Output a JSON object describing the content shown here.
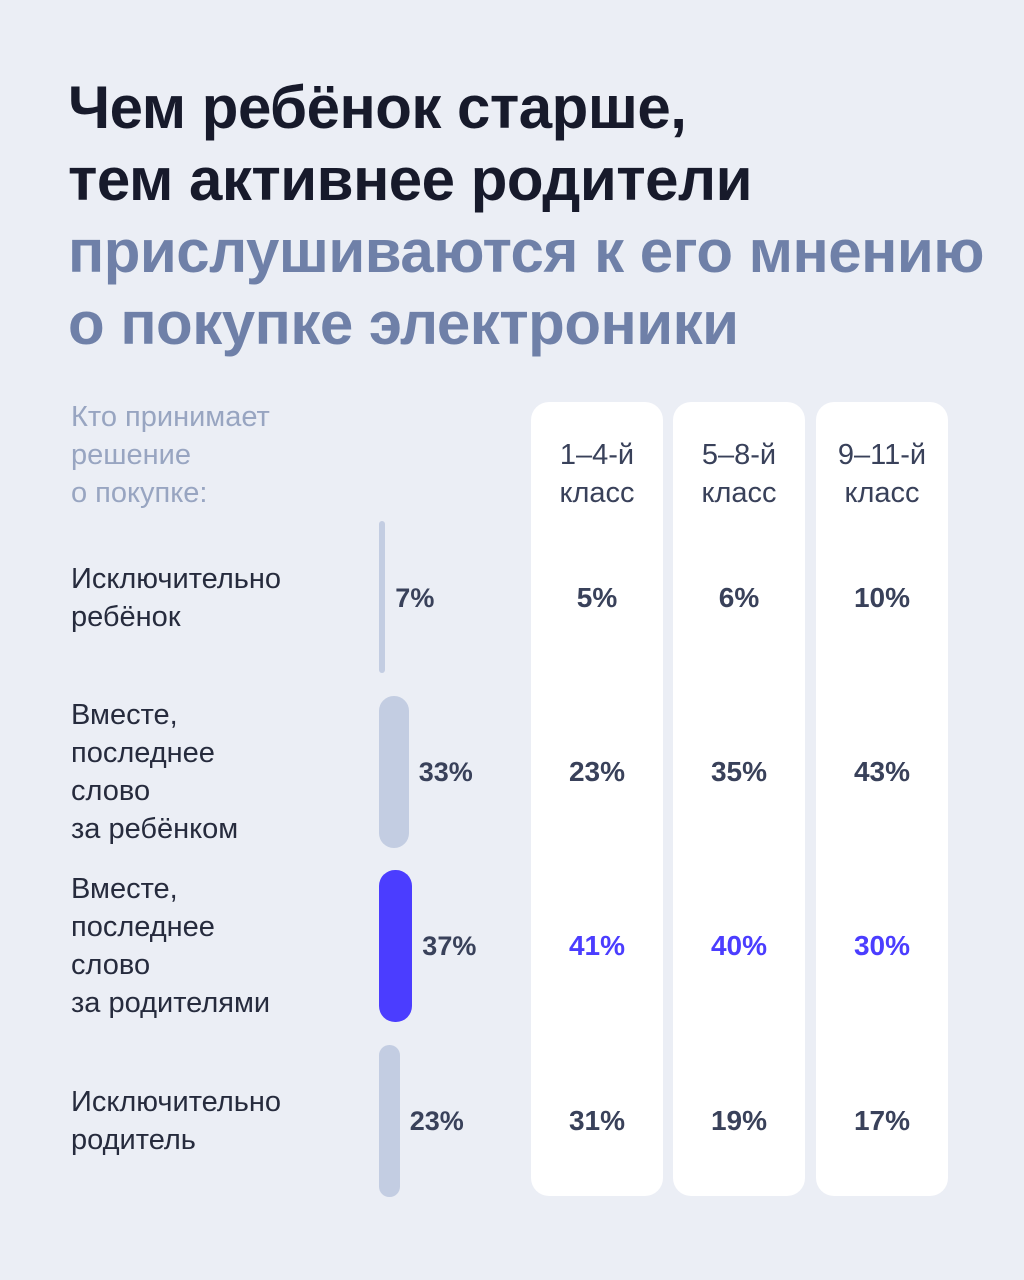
{
  "title": {
    "lines_dark": [
      "Чем ребёнок старше,",
      "тем активнее родители"
    ],
    "lines_accent": [
      "прислушиваются к его мнению",
      "о покупке электроники"
    ]
  },
  "header_label": [
    "Кто принимает",
    "решение",
    "о покупке:"
  ],
  "colors": {
    "background": "#ebeef5",
    "bar_neutral": "#c3cde2",
    "bar_highlight": "#4b3dff",
    "text_highlight": "#4b3dff"
  },
  "chart_data": {
    "type": "table",
    "columns": [
      {
        "label": [
          "1–4-й",
          "класс"
        ]
      },
      {
        "label": [
          "5–8-й",
          "класс"
        ]
      },
      {
        "label": [
          "9–11-й",
          "класс"
        ]
      }
    ],
    "rows": [
      {
        "label": [
          "Исключительно",
          "ребёнок"
        ],
        "total": 7,
        "total_label": "7%",
        "values": [
          5,
          6,
          10
        ],
        "value_labels": [
          "5%",
          "6%",
          "10%"
        ],
        "highlight": false
      },
      {
        "label": [
          "Вместе,",
          "последнее",
          "слово",
          "за ребёнком"
        ],
        "total": 33,
        "total_label": "33%",
        "values": [
          23,
          35,
          43
        ],
        "value_labels": [
          "23%",
          "35%",
          "43%"
        ],
        "highlight": false
      },
      {
        "label": [
          "Вместе,",
          "последнее",
          "слово",
          "за родителями"
        ],
        "total": 37,
        "total_label": "37%",
        "values": [
          41,
          40,
          30
        ],
        "value_labels": [
          "41%",
          "40%",
          "30%"
        ],
        "highlight": true
      },
      {
        "label": [
          "Исключительно",
          "родитель"
        ],
        "total": 23,
        "total_label": "23%",
        "values": [
          31,
          19,
          17
        ],
        "value_labels": [
          "31%",
          "19%",
          "17%"
        ],
        "highlight": false
      }
    ]
  }
}
